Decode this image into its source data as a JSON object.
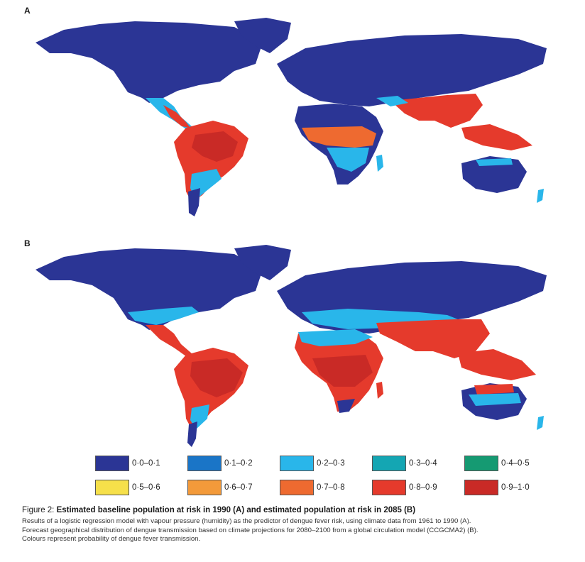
{
  "panels": [
    {
      "label": "A"
    },
    {
      "label": "B"
    }
  ],
  "legend": [
    {
      "label": "0·0–0·1",
      "color": "#2b3595"
    },
    {
      "label": "0·1–0·2",
      "color": "#1a75c7"
    },
    {
      "label": "0·2–0·3",
      "color": "#29b6ea"
    },
    {
      "label": "0·3–0·4",
      "color": "#14a6b3"
    },
    {
      "label": "0·4–0·5",
      "color": "#159a72"
    },
    {
      "label": "0·5–0·6",
      "color": "#f6e04a"
    },
    {
      "label": "0·6–0·7",
      "color": "#f39a3a"
    },
    {
      "label": "0·7–0·8",
      "color": "#ee6a30"
    },
    {
      "label": "0·8–0·9",
      "color": "#e53a2c"
    },
    {
      "label": "0·9–1·0",
      "color": "#c92a26"
    }
  ],
  "caption": {
    "figure_prefix": "Figure 2: ",
    "title": "Estimated baseline population at risk in 1990 (A) and estimated population at risk in 2085 (B)",
    "lines": [
      "Results of a logistic regression model with vapour pressure (humidity) as the predictor of dengue fever risk, using climate data from 1961 to 1990 (A).",
      "Forecast geographical distribution of dengue transmission based on climate projections for 2080–2100 from a global circulation model (CCGCMA2) (B).",
      "Colours represent probability of dengue fever transmission."
    ]
  }
}
